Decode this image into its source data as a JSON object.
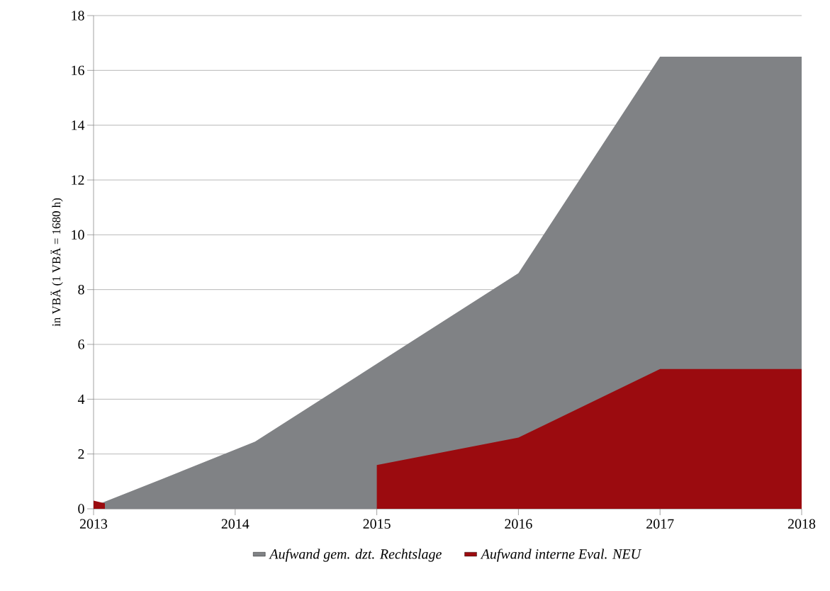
{
  "chart_data": {
    "type": "area",
    "ylabel": "in VBÄ (1 VBÄ = 1680 h)",
    "series": [
      {
        "name": "Aufwand gem. dzt. Rechtslage",
        "color": "#808285",
        "x": [
          2013,
          2013.49,
          2014.14,
          2016,
          2017,
          2018
        ],
        "values": [
          0.1,
          1.1,
          2.45,
          8.6,
          16.5,
          16.5
        ]
      },
      {
        "name": "Aufwand interne Eval. NEU",
        "color": "#9b0b0f",
        "x": [
          2013,
          2013.08,
          2013.08,
          2015,
          2015,
          2016,
          2017,
          2018
        ],
        "values": [
          0.3,
          0.2,
          0,
          0,
          1.6,
          2.6,
          5.1,
          5.1
        ]
      }
    ],
    "xlim": [
      2013,
      2018
    ],
    "xticks": [
      2013,
      2014,
      2015,
      2016,
      2017,
      2018
    ],
    "ylim": [
      0,
      18
    ],
    "yticks": [
      0,
      2,
      4,
      6,
      8,
      10,
      12,
      14,
      16,
      18
    ],
    "grid": "y",
    "legend": "bottom"
  }
}
